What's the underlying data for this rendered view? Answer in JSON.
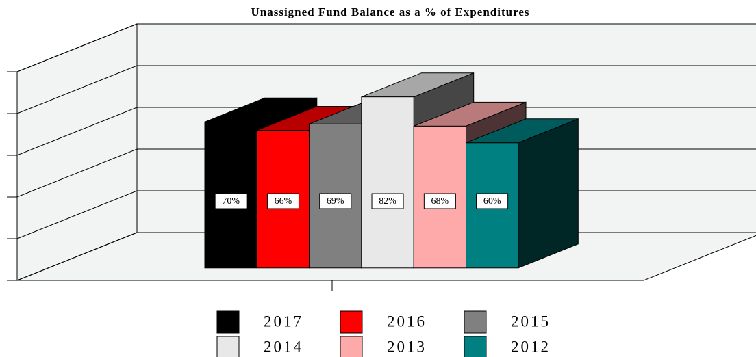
{
  "chart_data": {
    "type": "bar3d",
    "title": "Unassigned Fund Balance as a % of Expenditures",
    "categories": [
      null
    ],
    "series": [
      {
        "name": "2017",
        "color": "#000000",
        "values": [
          70
        ],
        "value_labels": [
          "70%"
        ]
      },
      {
        "name": "2016",
        "color": "#ff0000",
        "values": [
          66
        ],
        "value_labels": [
          "66%"
        ]
      },
      {
        "name": "2015",
        "color": "#808080",
        "values": [
          69
        ],
        "value_labels": [
          "69%"
        ]
      },
      {
        "name": "2014",
        "color": "#e8e8e8",
        "values": [
          82
        ],
        "value_labels": [
          "82%"
        ]
      },
      {
        "name": "2013",
        "color": "#ffaaaa",
        "values": [
          68
        ],
        "value_labels": [
          "68%"
        ]
      },
      {
        "name": "2012",
        "color": "#008080",
        "values": [
          60
        ],
        "value_labels": [
          "60%"
        ]
      }
    ],
    "ylim": [
      0,
      100
    ],
    "yticks": [
      0,
      20,
      40,
      60,
      80,
      100
    ],
    "grid": true,
    "legend": "bottom"
  }
}
